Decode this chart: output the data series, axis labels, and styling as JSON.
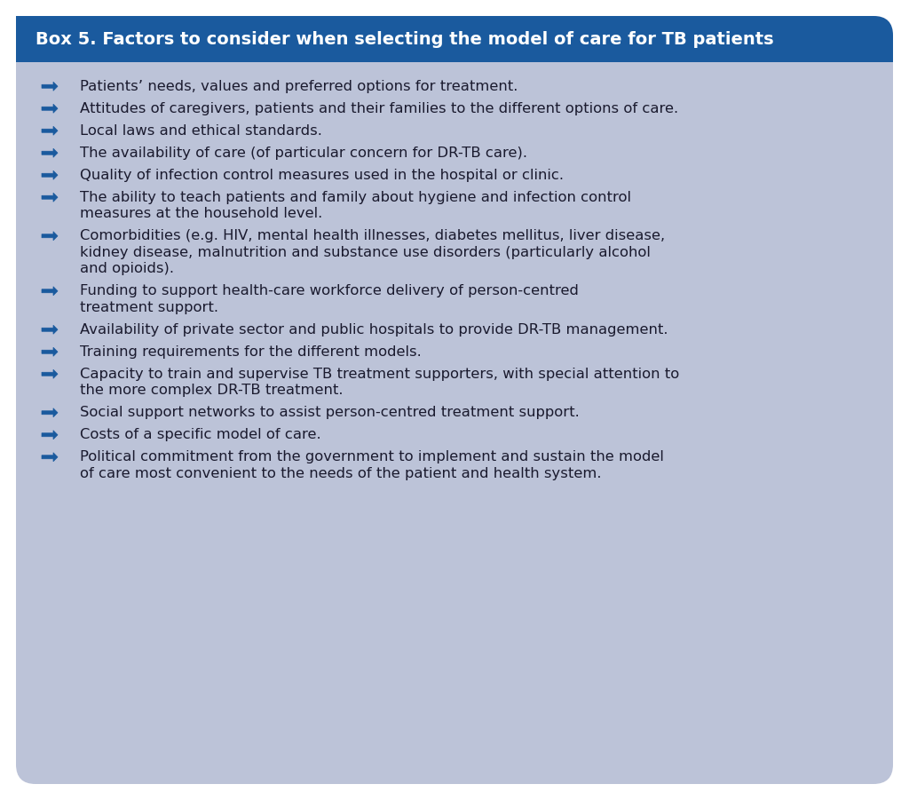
{
  "title": "Box 5. Factors to consider when selecting the model of care for TB patients",
  "title_bg_color": "#1a5a9e",
  "title_text_color": "#ffffff",
  "body_bg_color": "#bcc3d8",
  "outer_bg_color": "#ffffff",
  "arrow_color": "#1a5a9e",
  "text_color": "#1a1a2e",
  "bullet_items": [
    [
      "Patients’ needs, values and preferred options for treatment."
    ],
    [
      "Attitudes of caregivers, patients and their families to the different options of care."
    ],
    [
      "Local laws and ethical standards."
    ],
    [
      "The availability of care (of particular concern for DR-TB care)."
    ],
    [
      "Quality of infection control measures used in the hospital or clinic."
    ],
    [
      "The ability to teach patients and family about hygiene and infection control",
      "measures at the household level."
    ],
    [
      "Comorbidities (e.g. HIV, mental health illnesses, diabetes mellitus, liver disease,",
      "kidney disease, malnutrition and substance use disorders (particularly alcohol",
      "and opioids)."
    ],
    [
      "Funding to support health-care workforce delivery of person-centred",
      "treatment support."
    ],
    [
      "Availability of private sector and public hospitals to provide DR-TB management."
    ],
    [
      "Training requirements for the different models."
    ],
    [
      "Capacity to train and supervise TB treatment supporters, with special attention to",
      "the more complex DR-TB treatment."
    ],
    [
      "Social support networks to assist person-centred treatment support."
    ],
    [
      "Costs of a specific model of care."
    ],
    [
      "Political commitment from the government to implement and sustain the model",
      "of care most convenient to the needs of the patient and health system."
    ]
  ],
  "fig_width": 10.24,
  "fig_height": 9.01,
  "dpi": 100
}
